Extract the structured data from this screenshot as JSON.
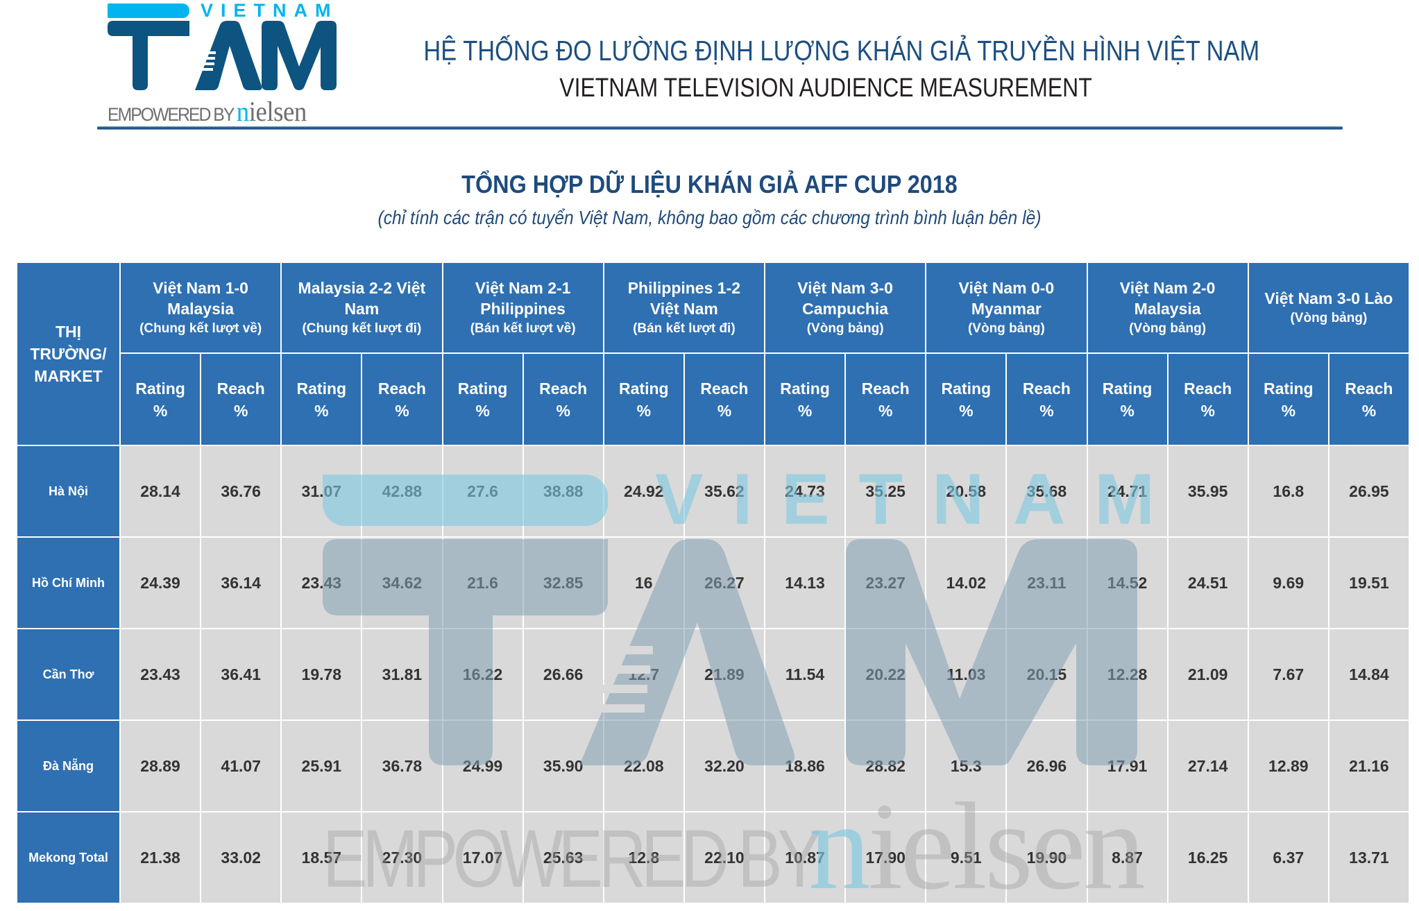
{
  "logo": {
    "top_word": "VIETNAM",
    "brand": "TAM",
    "tagline_prefix": "EMPOWERED BY ",
    "tagline_brand_first": "n",
    "tagline_brand_rest": "ielsen",
    "colors": {
      "cyan": "#00b5ef",
      "navy": "#0d5480",
      "grey": "#6d6e70"
    }
  },
  "header": {
    "title_vn": "HỆ THỐNG ĐO LƯỜNG ĐỊNH LƯỢNG KHÁN GIẢ TRUYỀN HÌNH VIỆT NAM",
    "title_en": "VIETNAM TELEVISION AUDIENCE MEASUREMENT"
  },
  "report": {
    "title": "TỔNG HỢP DỮ LIỆU KHÁN GIẢ AFF CUP 2018",
    "subtitle": "(chỉ tính các trận có tuyển Việt Nam, không bao gồm các chương trình bình luận bên lề)"
  },
  "table": {
    "market_header": [
      "THỊ",
      "TRƯỜNG/",
      "MARKET"
    ],
    "metric_labels": {
      "rating": "Rating",
      "reach": "Reach",
      "unit": "%"
    },
    "matches": [
      {
        "line1": "Việt Nam 1-0",
        "line2": "Malaysia",
        "stage": "(Chung kết lượt về)"
      },
      {
        "line1": "Malaysia 2-2 Việt",
        "line2": "Nam",
        "stage": "(Chung kết lượt đi)"
      },
      {
        "line1": "Việt Nam 2-1",
        "line2": "Philippines",
        "stage": "(Bán kết lượt về)"
      },
      {
        "line1": "Philippines 1-2",
        "line2": "Việt Nam",
        "stage": "(Bán kết lượt đi)"
      },
      {
        "line1": "Việt Nam 3-0",
        "line2": "Campuchia",
        "stage": "(Vòng bảng)"
      },
      {
        "line1": "Việt Nam 0-0",
        "line2": "Myanmar",
        "stage": "(Vòng bảng)"
      },
      {
        "line1": "Việt Nam 2-0",
        "line2": "Malaysia",
        "stage": "(Vòng bảng)"
      },
      {
        "line1": "Việt Nam 3-0 Lào",
        "line2": "",
        "stage": "(Vòng bảng)"
      }
    ],
    "rows": [
      {
        "market": "Hà Nội",
        "values": [
          "28.14",
          "36.76",
          "31.07",
          "42.88",
          "27.6",
          "38.88",
          "24.92",
          "35.62",
          "24.73",
          "35.25",
          "20.58",
          "35.68",
          "24.71",
          "35.95",
          "16.8",
          "26.95"
        ]
      },
      {
        "market": "Hồ Chí Minh",
        "values": [
          "24.39",
          "36.14",
          "23.43",
          "34.62",
          "21.6",
          "32.85",
          "16",
          "26.27",
          "14.13",
          "23.27",
          "14.02",
          "23.11",
          "14.52",
          "24.51",
          "9.69",
          "19.51"
        ]
      },
      {
        "market": "Cần Thơ",
        "values": [
          "23.43",
          "36.41",
          "19.78",
          "31.81",
          "16.22",
          "26.66",
          "12.7",
          "21.89",
          "11.54",
          "20.22",
          "11.03",
          "20.15",
          "12.28",
          "21.09",
          "7.67",
          "14.84"
        ]
      },
      {
        "market": "Đà Nẵng",
        "values": [
          "28.89",
          "41.07",
          "25.91",
          "36.78",
          "24.99",
          "35.90",
          "22.08",
          "32.20",
          "18.86",
          "28.82",
          "15.3",
          "26.96",
          "17.91",
          "27.14",
          "12.89",
          "21.16"
        ]
      },
      {
        "market": "Mekong Total",
        "values": [
          "21.38",
          "33.02",
          "18.57",
          "27.30",
          "17.07",
          "25.63",
          "12.8",
          "22.10",
          "10.87",
          "17.90",
          "9.51",
          "19.90",
          "8.87",
          "16.25",
          "6.37",
          "13.71"
        ]
      }
    ],
    "colors": {
      "header_bg": "#2e70b2",
      "cell_bg": "#d9d9d9",
      "cell_text": "#333333",
      "border": "#ffffff"
    }
  },
  "watermark": {
    "top_word": "VIETNAM",
    "brand": "TAM",
    "tagline_prefix": "EMPOWERED BY",
    "tagline_brand_first": "n",
    "tagline_brand_rest": "ielsen"
  }
}
